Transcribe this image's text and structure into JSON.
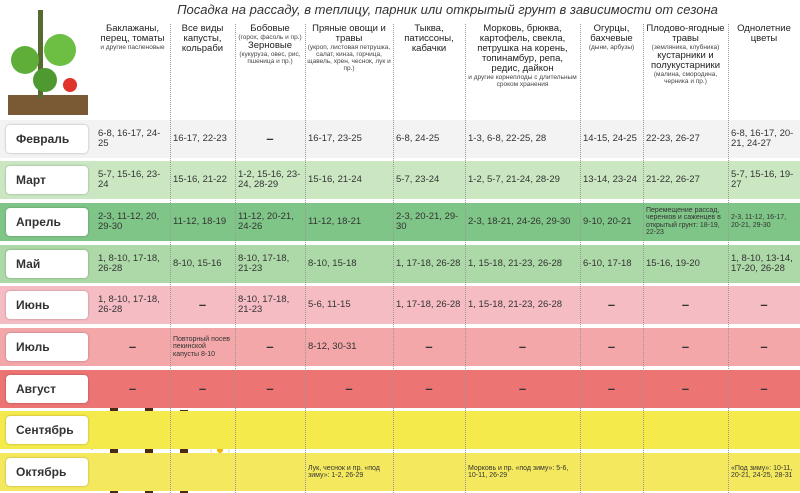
{
  "title": "Посадка на рассаду, в теплицу, парник или открытый грунт в зависимости от сезона",
  "table": {
    "columns": [
      {
        "parts": [
          {
            "title": "Баклажаны, перец, томаты",
            "note": "и другие пасленовые"
          }
        ]
      },
      {
        "parts": [
          {
            "title": "Все виды капусты, кольраби"
          }
        ]
      },
      {
        "parts": [
          {
            "title": "Бобовые",
            "note": "(горох, фасоль и пр.)"
          },
          {
            "title": "Зерновые",
            "note": "(кукуруза, овес, рис, пшеница и пр.)"
          }
        ]
      },
      {
        "parts": [
          {
            "title": "Пряные овощи и травы",
            "note": "(укроп, листовая петрушка, салат, кинза, горчица, щавель, хрен, чеснок, лук и пр.)"
          }
        ]
      },
      {
        "parts": [
          {
            "title": "Тыква, патиссоны, кабачки"
          }
        ]
      },
      {
        "parts": [
          {
            "title": "Морковь, брюква, картофель, свекла, петрушка на корень, топинамбур, репа, редис, дайкон",
            "note": "и другие корнеплоды с длительным сроком хранения"
          }
        ]
      },
      {
        "parts": [
          {
            "title": "Огурцы, бахчевые",
            "note": "(дыни, арбузы)"
          }
        ]
      },
      {
        "parts": [
          {
            "title": "Плодово-ягодные травы",
            "note": "(земляника, клубника)"
          },
          {
            "title": "кустарники и полукустарники",
            "note": "(малина, смородина, черника и пр.)"
          }
        ]
      },
      {
        "parts": [
          {
            "title": "Однолетние цветы"
          }
        ]
      }
    ],
    "rows": [
      {
        "month": "Февраль",
        "color": "#f3f3f3",
        "cells": [
          "6-8, 16-17, 24-25",
          "16-17, 22-23",
          "–",
          "16-17, 23-25",
          "6-8, 24-25",
          "1-3, 6-8, 22-25, 28",
          "14-15, 24-25",
          "22-23, 26-27",
          "6-8, 16-17, 20-21, 24-27"
        ]
      },
      {
        "month": "Март",
        "color": "#cbe7c2",
        "cells": [
          "5-7, 15-16, 23-24",
          "15-16, 21-22",
          "1-2, 15-16, 23-24, 28-29",
          "15-16, 21-24",
          "5-7, 23-24",
          "1-2, 5-7, 21-24, 28-29",
          "13-14, 23-24",
          "21-22, 26-27",
          "5-7, 15-16, 19-27"
        ]
      },
      {
        "month": "Апрель",
        "color": "#7fc587",
        "cells": [
          "2-3, 11-12, 20, 29-30",
          "11-12, 18-19",
          "11-12, 20-21, 24-26",
          "11-12, 18-21",
          "2-3, 20-21, 29-30",
          "2-3, 18-21, 24-26, 29-30",
          "9-10, 20-21",
          "Перемещение рассад, черенков и саженцев в открытый грунт: 18-19, 22-23",
          "2-3, 11-12, 16-17, 20-21, 29-30"
        ]
      },
      {
        "month": "Май",
        "color": "#acd9a7",
        "cells": [
          "1, 8-10, 17-18, 26-28",
          "8-10, 15-16",
          "8-10, 17-18, 21-23",
          "8-10, 15-18",
          "1, 17-18, 26-28",
          "1, 15-18, 21-23, 26-28",
          "6-10, 17-18",
          "15-16, 19-20",
          "1, 8-10, 13-14, 17-20, 26-28"
        ]
      },
      {
        "month": "Июнь",
        "color": "#f6bcc4",
        "cells": [
          "1, 8-10, 17-18, 26-28",
          "–",
          "8-10, 17-18, 21-23",
          "5-6, 11-15",
          "1, 17-18, 26-28",
          "1, 15-18, 21-23, 26-28",
          "–",
          "–",
          "–"
        ]
      },
      {
        "month": "Июль",
        "color": "#f3a7a9",
        "cells": [
          "–",
          "Повторный посев пекинской капусты 8-10",
          "–",
          "8-12, 30-31",
          "–",
          "–",
          "–",
          "–",
          "–"
        ]
      },
      {
        "month": "Август",
        "color": "#ec7473",
        "cells": [
          "–",
          "–",
          "–",
          "–",
          "–",
          "–",
          "–",
          "–",
          "–"
        ]
      },
      {
        "month": "Сентябрь",
        "color": "#f5ea4c",
        "cells": []
      },
      {
        "month": "Октябрь",
        "color": "#f4e95e",
        "cells": [
          null,
          null,
          null,
          "Лук, чеснок и пр. «под зиму»: 1-2, 26-29",
          null,
          "Морковь и пр. «под зиму»: 5-6, 10-11, 26-29",
          null,
          null,
          "«Под зиму»: 10-11, 20-21, 24-25, 28-31"
        ]
      }
    ]
  }
}
